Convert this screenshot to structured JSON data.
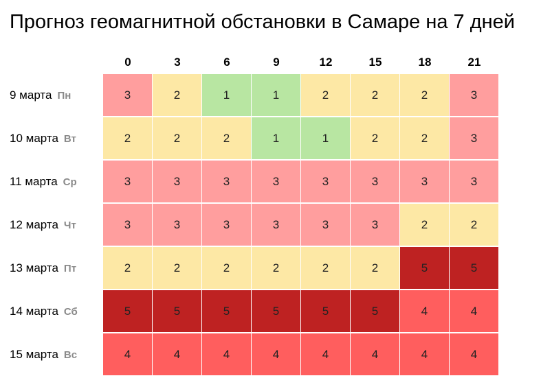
{
  "title": "Прогноз геомагнитной обстановки в Самаре на 7 дней",
  "chart_data": {
    "type": "heatmap",
    "title": "Прогноз геомагнитной обстановки в Самаре на 7 дней",
    "x": [
      "0",
      "3",
      "6",
      "9",
      "12",
      "15",
      "18",
      "21"
    ],
    "rows": [
      {
        "date": "9 марта",
        "dow": "Пн",
        "values": [
          3,
          2,
          1,
          1,
          2,
          2,
          2,
          3
        ]
      },
      {
        "date": "10 марта",
        "dow": "Вт",
        "values": [
          2,
          2,
          2,
          1,
          1,
          2,
          2,
          3
        ]
      },
      {
        "date": "11 марта",
        "dow": "Ср",
        "values": [
          3,
          3,
          3,
          3,
          3,
          3,
          3,
          3
        ]
      },
      {
        "date": "12 марта",
        "dow": "Чт",
        "values": [
          3,
          3,
          3,
          3,
          3,
          3,
          2,
          2
        ]
      },
      {
        "date": "13 марта",
        "dow": "Пт",
        "values": [
          2,
          2,
          2,
          2,
          2,
          2,
          5,
          5
        ]
      },
      {
        "date": "14 марта",
        "dow": "Сб",
        "values": [
          5,
          5,
          5,
          5,
          5,
          5,
          4,
          4
        ]
      },
      {
        "date": "15 марта",
        "dow": "Вс",
        "values": [
          4,
          4,
          4,
          4,
          4,
          4,
          4,
          4
        ]
      }
    ],
    "colors": {
      "1": "#b8e6a2",
      "2": "#fde8a5",
      "3": "#ff9e9e",
      "4": "#ff5e5e",
      "5": "#be2222"
    }
  }
}
